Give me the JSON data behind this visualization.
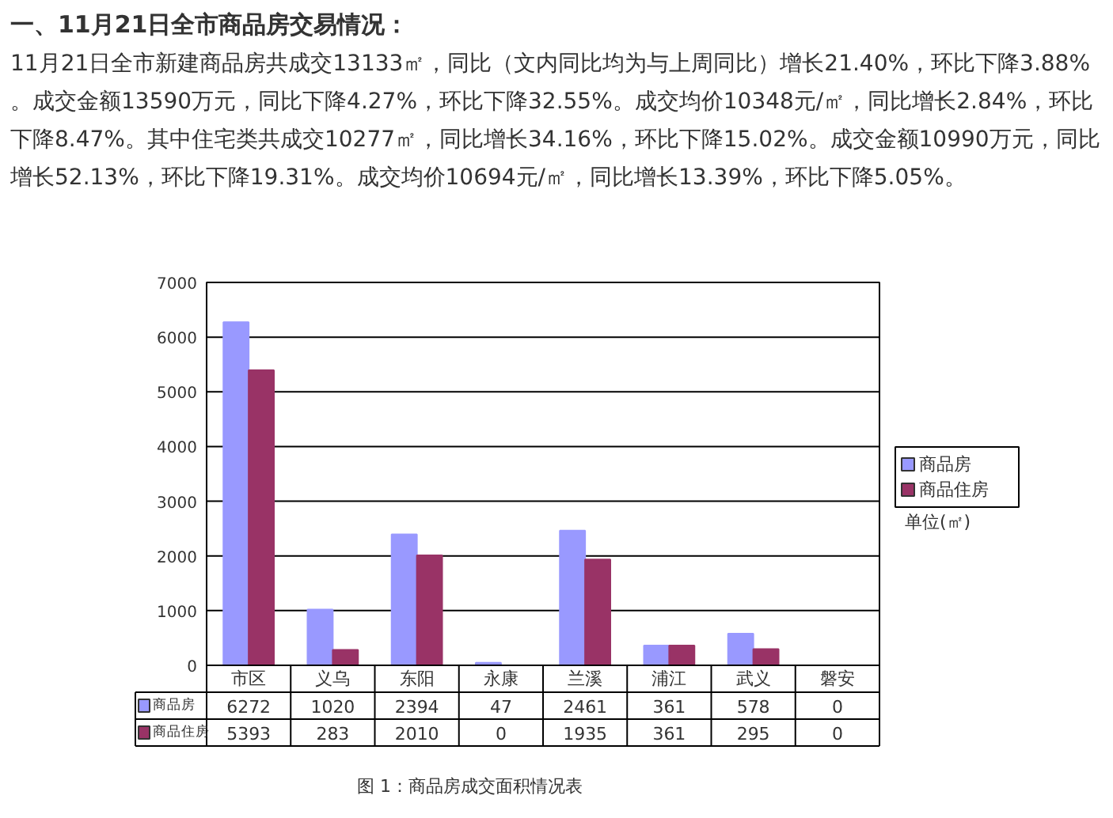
{
  "chart_data": {
    "type": "bar",
    "title": "一、11月21日全市商品房交易情况：",
    "subtitle": "11月21日全市新建商品房共成交13133㎡，同比（文内同比均为与上周同比）增长21.40%，环比下降3.88%。成交金额13590万元，同比下降4.27%，环比下降32.55%。成交均价10348元/㎡，同比增长2.84%，环比下降8.47%。其中住宅类共成交10277㎡，同比增长34.16%，环比下降15.02%。成交金额10990万元，同比增长52.13%，环比下降19.31%。成交均价10694元/㎡，同比增长13.39%，环比下降5.05%。",
    "categories": [
      "市区",
      "义乌",
      "东阳",
      "永康",
      "兰溪",
      "浦江",
      "武义",
      "磐安"
    ],
    "series": [
      {
        "name": "商品房",
        "color": "#9999ff",
        "values": [
          6272,
          1020,
          2394,
          47,
          2461,
          361,
          578,
          0
        ]
      },
      {
        "name": "商品住房",
        "color": "#993366",
        "values": [
          5393,
          283,
          2010,
          0,
          1935,
          361,
          295,
          0
        ]
      }
    ],
    "ylim": [
      0,
      7000
    ],
    "yticks": [
      0,
      1000,
      2000,
      3000,
      4000,
      5000,
      6000,
      7000
    ],
    "grid": "y",
    "legend": "right",
    "data_labels": true,
    "annotations": [
      "单位(㎡)",
      "图 1：商品房成交面积情况表"
    ]
  }
}
